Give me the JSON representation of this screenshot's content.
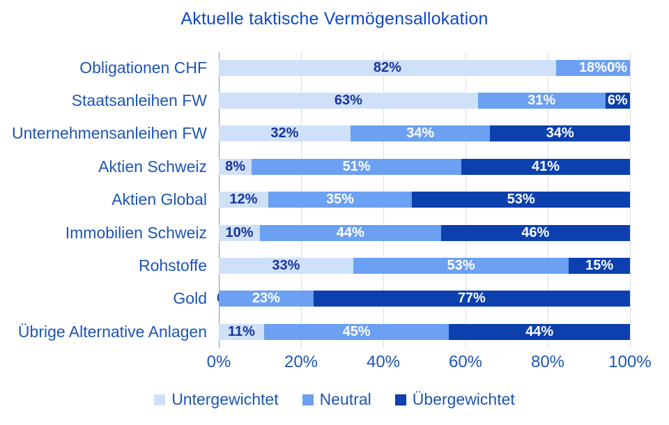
{
  "title": "Aktuelle taktische Vermögensallokation",
  "colors": {
    "underweight": "#cfe1f8",
    "neutral": "#6ba0f2",
    "overweight": "#0c40ae",
    "title_text": "#0e49c6",
    "axis_text": "#1c55b4",
    "bar_label_dark": "#17339d",
    "bar_label_light": "#ffffff",
    "gridline": "#dcdcdc",
    "axis_line": "#8c939e"
  },
  "chart_data": {
    "type": "bar",
    "orientation": "horizontal",
    "stacked": true,
    "title": "Aktuelle taktische Vermögensallokation",
    "categories": [
      "Obligationen CHF",
      "Staatsanleihen FW",
      "Unternehmensanleihen FW",
      "Aktien Schweiz",
      "Aktien Global",
      "Immobilien Schweiz",
      "Rohstoffe",
      "Gold",
      "Übrige Alternative Anlagen"
    ],
    "series": [
      {
        "name": "Untergewichtet",
        "color": "#cfe1f8",
        "values": [
          82,
          63,
          32,
          8,
          12,
          10,
          33,
          0,
          11
        ]
      },
      {
        "name": "Neutral",
        "color": "#6ba0f2",
        "values": [
          18,
          31,
          34,
          51,
          35,
          44,
          53,
          23,
          45
        ]
      },
      {
        "name": "Übergewichtet",
        "color": "#0c40ae",
        "values": [
          0,
          6,
          34,
          41,
          53,
          46,
          15,
          77,
          44
        ]
      }
    ],
    "data_label_format": "{value}%",
    "x_ticks": [
      "0%",
      "20%",
      "40%",
      "60%",
      "80%",
      "100%"
    ],
    "xlim": [
      0,
      100
    ],
    "xlabel": "",
    "ylabel": "",
    "grid": true,
    "legend": [
      "Untergewichtet",
      "Neutral",
      "Übergewichtet"
    ],
    "legend_position": "bottom"
  }
}
